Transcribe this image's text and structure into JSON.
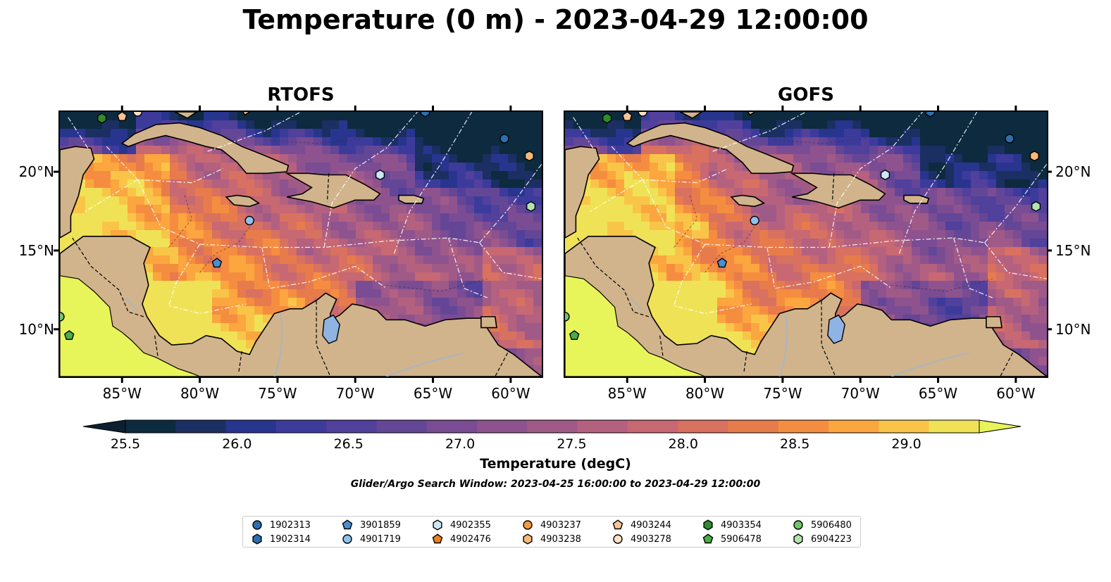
{
  "title": "Temperature (0 m) - 2023-04-29 12:00:00",
  "panels": [
    {
      "title": "RTOFS"
    },
    {
      "title": "GOFS"
    }
  ],
  "axes": {
    "lon_labels": [
      "85°W",
      "80°W",
      "75°W",
      "70°W",
      "65°W",
      "60°W"
    ],
    "lon_values": [
      -85,
      -80,
      -75,
      -70,
      -65,
      -60
    ],
    "lat_labels": [
      "20°N",
      "15°N",
      "10°N"
    ],
    "lat_values": [
      20,
      15,
      10
    ],
    "lon_range": [
      -89,
      -58
    ],
    "lat_range": [
      7,
      23.8
    ]
  },
  "colorbar": {
    "label": "Temperature (degC)",
    "tick_labels": [
      "25.5",
      "26.0",
      "26.5",
      "27.0",
      "27.5",
      "28.0",
      "28.5",
      "29.0"
    ],
    "range": [
      25.5,
      29.25
    ],
    "colors": [
      "#0d2a3f",
      "#1b2f63",
      "#28358f",
      "#3c3b9c",
      "#51409c",
      "#644697",
      "#7a4c93",
      "#8e538e",
      "#a05a88",
      "#b46180",
      "#c76873",
      "#d8715f",
      "#e87b4c",
      "#f58d40",
      "#fba63e",
      "#f9c548",
      "#f0e256"
    ],
    "extend_low_color": "#0b1f2f",
    "extend_high_color": "#e8f55a"
  },
  "search_window": "Glider/Argo Search Window: 2023-04-25 16:00:00 to 2023-04-29 12:00:00",
  "legend": {
    "items": [
      {
        "label": "1902313",
        "marker": "circle",
        "color": "#2b6fb0"
      },
      {
        "label": "1902314",
        "marker": "hexagon",
        "color": "#2b6fb0"
      },
      {
        "label": "3901859",
        "marker": "pentagon",
        "color": "#4a90d0"
      },
      {
        "label": "4901719",
        "marker": "circle",
        "color": "#8ec2ea"
      },
      {
        "label": "4902355",
        "marker": "hexagon",
        "color": "#cde6f7"
      },
      {
        "label": "4902476",
        "marker": "pentagon",
        "color": "#f07f1c"
      },
      {
        "label": "4903237",
        "marker": "circle",
        "color": "#f5993e"
      },
      {
        "label": "4903238",
        "marker": "hexagon",
        "color": "#f9b878"
      },
      {
        "label": "4903244",
        "marker": "pentagon",
        "color": "#f9c494"
      },
      {
        "label": "4903278",
        "marker": "circle",
        "color": "#fde1c5"
      },
      {
        "label": "4903354",
        "marker": "hexagon",
        "color": "#2e8b2e"
      },
      {
        "label": "5906478",
        "marker": "pentagon",
        "color": "#4aae44"
      },
      {
        "label": "5906480",
        "marker": "circle",
        "color": "#6ec66a"
      },
      {
        "label": "6904223",
        "marker": "hexagon",
        "color": "#b5e3ae"
      }
    ]
  },
  "floats": [
    {
      "id": "1902313",
      "lon": -60.4,
      "lat": 22.1
    },
    {
      "id": "1902314",
      "lon": -65.5,
      "lat": 23.8
    },
    {
      "id": "3901859",
      "lon": -78.9,
      "lat": 14.2
    },
    {
      "id": "4901719",
      "lon": -76.8,
      "lat": 16.9
    },
    {
      "id": "4902355",
      "lon": -68.4,
      "lat": 19.8
    },
    {
      "id": "4903238",
      "lon": -58.8,
      "lat": 21.0
    },
    {
      "id": "4903244",
      "lon": -85.0,
      "lat": 23.5
    },
    {
      "id": "4903278",
      "lon": -84.0,
      "lat": 23.8
    },
    {
      "id": "4903354",
      "lon": -86.3,
      "lat": 23.4
    },
    {
      "id": "5906478",
      "lon": -88.4,
      "lat": 9.6
    },
    {
      "id": "5906480",
      "lon": -89.0,
      "lat": 10.8
    },
    {
      "id": "6904223",
      "lon": -58.7,
      "lat": 17.8
    }
  ],
  "colors": {
    "land": "#d1b48c",
    "coastline": "#000000",
    "lake": "#8fb3e3",
    "river": "#9fb7cc",
    "eez": "#ffffff"
  }
}
